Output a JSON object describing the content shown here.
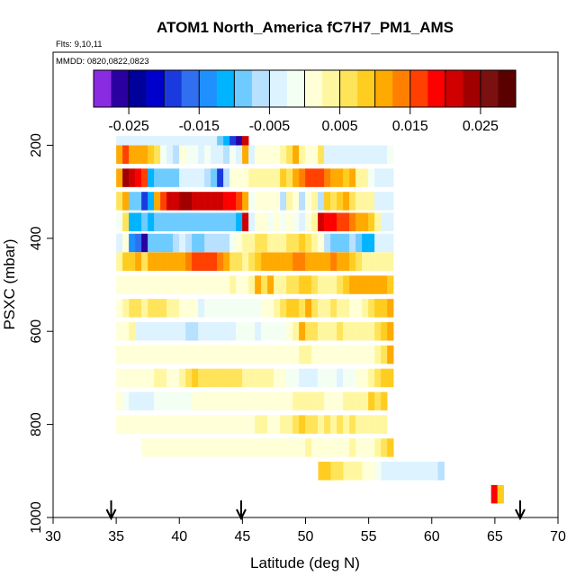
{
  "chart_data": {
    "type": "heatmap",
    "title": "ATOM1 North_America fC7H7_PM1_AMS",
    "subtitle_flights": "Flts: 9,10,11",
    "subtitle_dates": "MMDD: 0820,0822,0823",
    "xlabel": "Latitude (deg N)",
    "ylabel": "PSXC (mbar)",
    "xlim": [
      30,
      70
    ],
    "ylim": [
      1000,
      0
    ],
    "x_ticks": [
      "30",
      "35",
      "40",
      "45",
      "50",
      "55",
      "60",
      "65",
      "70"
    ],
    "y_ticks": [
      "200",
      "400",
      "600",
      "800",
      "1000"
    ],
    "colorbar": {
      "range": [
        -0.03,
        0.03
      ],
      "tick_labels": [
        "-0.025",
        "-0.015",
        "-0.005",
        "0.005",
        "0.015",
        "0.025"
      ],
      "tick_values": [
        -0.025,
        -0.015,
        -0.005,
        0.005,
        0.015,
        0.025
      ],
      "colors": [
        "#8a2be2",
        "#2a00a0",
        "#00009a",
        "#0000cd",
        "#1a3ae0",
        "#2f6ff0",
        "#1e90ff",
        "#00b4ff",
        "#6ecbff",
        "#b8e0ff",
        "#ddf3ff",
        "#f4fff4",
        "#ffffd8",
        "#fff7a0",
        "#ffe45a",
        "#ffcc20",
        "#ffaa00",
        "#ff8000",
        "#ff4000",
        "#ff0000",
        "#d00000",
        "#a00000",
        "#7a1010",
        "#5a0000"
      ]
    },
    "flight_markers_latitude": [
      34.6,
      44.9,
      67.0
    ],
    "bands": [
      {
        "pressure": 200,
        "lat_start": 35,
        "values": [
          -0.003,
          -0.003,
          -0.004,
          -0.004,
          -0.004,
          -0.004,
          -0.003,
          -0.003,
          -0.003,
          -0.003,
          -0.003,
          -0.004,
          -0.004,
          -0.004,
          -0.004,
          -0.005,
          -0.008,
          -0.012,
          -0.02,
          -0.025,
          0.022
        ]
      },
      {
        "pressure": 220,
        "lat_start": 35,
        "values": [
          0.012,
          0.016,
          0.012,
          0.011,
          0.01,
          0.009,
          0.006,
          -0.002,
          -0.003,
          -0.006,
          0.0,
          -0.002,
          -0.002,
          -0.003,
          -0.002,
          -0.004,
          -0.003,
          -0.007,
          -0.002,
          -0.004,
          0.012,
          -0.004,
          0.002,
          0.001,
          0.002,
          0.002,
          0.004,
          0.006,
          0.01,
          0.004,
          0.002,
          0.002,
          0.006,
          -0.003,
          -0.004,
          -0.003,
          -0.003,
          -0.003,
          -0.003,
          -0.003,
          -0.003,
          -0.003,
          -0.003,
          -0.002
        ]
      },
      {
        "pressure": 270,
        "lat_start": 35,
        "values": [
          0.012,
          0.024,
          0.02,
          0.018,
          0.016,
          -0.012,
          -0.01,
          -0.01,
          -0.009,
          -0.009,
          -0.004,
          -0.003,
          -0.004,
          -0.005,
          -0.007,
          -0.01,
          -0.018,
          -0.006,
          0.002,
          0.002,
          0.002,
          0.004,
          0.004,
          0.004,
          0.004,
          0.004,
          0.008,
          0.006,
          0.01,
          0.014,
          0.015,
          0.017,
          0.016,
          0.014,
          0.011,
          0.01,
          0.009,
          0.01,
          0.004,
          0.003,
          -0.002,
          -0.003,
          -0.003,
          -0.003
        ]
      },
      {
        "pressure": 320,
        "lat_start": 35,
        "values": [
          0.006,
          0.012,
          -0.01,
          -0.008,
          -0.018,
          -0.012,
          0.012,
          0.015,
          0.02,
          0.022,
          0.024,
          0.024,
          0.022,
          0.022,
          0.02,
          0.02,
          0.02,
          0.018,
          0.018,
          0.016,
          0.012,
          -0.002,
          0.0,
          0.002,
          0.002,
          0.0,
          -0.006,
          0.004,
          0.002,
          -0.006,
          0.0,
          0.003,
          -0.006,
          0.008,
          0.006,
          0.008,
          0.01,
          0.006,
          0.004,
          0.003,
          0.004,
          -0.003,
          -0.003,
          -0.003
        ]
      },
      {
        "pressure": 365,
        "lat_start": 35,
        "values": [
          -0.002,
          0.006,
          -0.012,
          -0.012,
          -0.01,
          -0.012,
          -0.01,
          -0.01,
          -0.01,
          -0.01,
          -0.01,
          -0.01,
          -0.01,
          -0.01,
          -0.01,
          -0.01,
          -0.01,
          -0.01,
          -0.01,
          -0.012,
          0.02,
          -0.003,
          0.0,
          0.001,
          -0.002,
          0.0,
          -0.002,
          0.001,
          -0.002,
          -0.003,
          0.0,
          0.004,
          0.02,
          0.018,
          0.018,
          0.016,
          0.015,
          0.014,
          0.012,
          0.01,
          0.008,
          0.004,
          -0.004,
          -0.003
        ]
      },
      {
        "pressure": 410,
        "lat_start": 35,
        "values": [
          -0.003,
          0.002,
          -0.014,
          -0.016,
          -0.026,
          -0.008,
          -0.01,
          -0.009,
          -0.009,
          -0.007,
          -0.004,
          -0.007,
          -0.008,
          -0.008,
          -0.007,
          -0.007,
          -0.006,
          -0.007,
          -0.002,
          0.002,
          0.003,
          0.004,
          0.006,
          0.006,
          0.005,
          0.004,
          0.004,
          0.006,
          0.006,
          0.008,
          0.006,
          0.004,
          0.002,
          -0.006,
          -0.008,
          -0.008,
          -0.008,
          -0.007,
          -0.01,
          -0.011,
          -0.012,
          -0.004,
          -0.003,
          -0.003
        ]
      },
      {
        "pressure": 450,
        "lat_start": 35,
        "values": [
          0.004,
          0.008,
          0.008,
          0.01,
          0.006,
          0.01,
          0.012,
          0.011,
          0.012,
          0.012,
          0.011,
          0.014,
          0.015,
          0.016,
          0.016,
          0.016,
          0.014,
          0.012,
          0.006,
          0.006,
          0.004,
          0.006,
          0.008,
          0.01,
          0.012,
          0.01,
          0.011,
          0.012,
          0.013,
          0.013,
          0.012,
          0.012,
          0.01,
          0.012,
          0.014,
          0.012,
          0.01,
          0.008,
          0.006,
          0.005,
          0.004,
          0.004,
          0.004,
          0.003
        ]
      },
      {
        "pressure": 500,
        "lat_start": 35,
        "values": [
          0.001,
          0.002,
          0.002,
          0.002,
          0.002,
          0.002,
          0.002,
          0.002,
          0.002,
          0.002,
          0.001,
          0.001,
          0.001,
          0.002,
          0.002,
          0.001,
          0.001,
          0.002,
          0.003,
          0.002,
          0.002,
          0.004,
          0.01,
          0.006,
          0.01,
          0.004,
          0.004,
          0.006,
          0.006,
          0.008,
          0.008,
          0.006,
          0.004,
          0.003,
          0.004,
          0.006,
          0.008,
          0.01,
          0.012,
          0.012,
          0.012,
          0.012,
          0.01,
          0.008
        ]
      },
      {
        "pressure": 550,
        "lat_start": 35,
        "values": [
          0.002,
          0.003,
          0.006,
          0.006,
          0.004,
          0.006,
          0.006,
          0.006,
          0.004,
          0.003,
          0.002,
          0.002,
          0.002,
          -0.003,
          -0.002,
          -0.002,
          -0.002,
          -0.002,
          -0.002,
          -0.002,
          -0.002,
          -0.002,
          -0.002,
          0.002,
          0.002,
          0.004,
          0.006,
          0.008,
          0.008,
          0.006,
          0.012,
          0.006,
          0.004,
          0.004,
          0.006,
          0.004,
          0.003,
          0.002,
          0.002,
          0.004,
          0.006,
          0.008,
          0.008,
          0.01
        ]
      },
      {
        "pressure": 600,
        "lat_start": 35,
        "values": [
          0.001,
          0.002,
          0.003,
          -0.004,
          -0.005,
          -0.005,
          -0.004,
          -0.004,
          -0.004,
          -0.004,
          -0.004,
          -0.007,
          -0.006,
          -0.005,
          -0.004,
          -0.004,
          -0.004,
          -0.003,
          -0.003,
          -0.002,
          -0.002,
          -0.002,
          -0.003,
          -0.002,
          -0.002,
          -0.002,
          -0.001,
          0.001,
          0.004,
          0.01,
          0.006,
          0.006,
          0.005,
          0.004,
          0.004,
          0.006,
          0.004,
          0.003,
          0.004,
          0.004,
          0.004,
          0.006,
          0.008,
          0.01
        ]
      },
      {
        "pressure": 650,
        "lat_start": 35,
        "values": [
          0.001,
          0.001,
          0.002,
          0.001,
          0.001,
          0.001,
          0.002,
          0.002,
          0.001,
          0.001,
          0.001,
          0.001,
          0.002,
          0.002,
          0.001,
          0.001,
          0.001,
          0.002,
          0.002,
          0.002,
          0.002,
          0.002,
          0.002,
          0.001,
          0.001,
          0.001,
          0.002,
          0.002,
          0.002,
          0.003,
          0.003,
          0.002,
          0.002,
          0.001,
          0.001,
          0.001,
          0.001,
          0.002,
          0.002,
          0.002,
          0.002,
          0.004,
          0.006,
          0.01
        ]
      },
      {
        "pressure": 700,
        "lat_start": 35,
        "values": [
          0.0,
          0.0,
          0.001,
          0.002,
          0.002,
          0.002,
          0.003,
          0.003,
          0.002,
          0.002,
          0.005,
          0.007,
          0.008,
          0.007,
          0.007,
          0.007,
          0.007,
          0.007,
          0.006,
          0.006,
          0.005,
          0.005,
          0.004,
          0.004,
          0.003,
          0.002,
          0.002,
          -0.002,
          -0.002,
          -0.003,
          -0.004,
          -0.003,
          -0.002,
          -0.002,
          -0.002,
          -0.003,
          -0.002,
          -0.001,
          0.001,
          0.002,
          0.004,
          0.006,
          0.008,
          0.008
        ]
      },
      {
        "pressure": 750,
        "lat_start": 35,
        "values": [
          0.001,
          -0.002,
          -0.003,
          -0.003,
          -0.003,
          -0.003,
          -0.002,
          -0.002,
          -0.002,
          -0.002,
          -0.002,
          -0.001,
          0.0,
          0.001,
          0.002,
          0.001,
          0.001,
          0.001,
          0.001,
          0.002,
          0.002,
          0.001,
          0.001,
          0.001,
          0.001,
          0.002,
          0.002,
          0.002,
          0.003,
          0.003,
          0.004,
          0.003,
          0.003,
          0.002,
          0.002,
          0.002,
          0.004,
          0.004,
          0.004,
          0.005,
          0.008,
          0.006,
          0.008
        ]
      },
      {
        "pressure": 800,
        "lat_start": 35,
        "values": [
          0.001,
          0.001,
          0.002,
          0.002,
          0.002,
          0.002,
          0.001,
          0.001,
          0.001,
          0.001,
          0.001,
          0.001,
          0.001,
          0.001,
          0.002,
          0.002,
          0.002,
          0.002,
          0.002,
          0.002,
          0.002,
          0.002,
          0.003,
          0.003,
          0.002,
          0.002,
          0.003,
          0.004,
          0.006,
          0.008,
          0.006,
          0.006,
          0.005,
          0.006,
          0.004,
          0.006,
          0.004,
          0.006,
          0.004,
          0.005,
          0.004,
          0.004,
          0.004
        ]
      },
      {
        "pressure": 850,
        "lat_start": 37,
        "values": [
          0.0,
          0.001,
          0.0,
          0.0,
          0.0,
          0.0,
          0.0,
          0.0,
          0.0,
          0.0,
          0.001,
          0.0,
          0.0,
          0.0,
          0.0,
          0.0,
          0.0,
          0.0,
          0.0,
          0.0,
          0.001,
          0.001,
          0.001,
          0.001,
          0.002,
          0.002,
          0.003,
          0.002,
          0.002,
          0.002,
          0.002,
          0.002,
          0.002,
          0.003,
          0.002,
          0.002,
          0.002,
          0.003,
          0.006,
          0.008
        ]
      },
      {
        "pressure": 900,
        "lat_start": 51,
        "values": [
          0.008,
          0.008,
          0.007,
          0.006,
          0.005,
          0.004,
          0.004,
          0.002,
          0.001,
          -0.002,
          -0.003,
          -0.003,
          -0.003,
          -0.004,
          -0.004,
          -0.004,
          -0.005,
          -0.005,
          -0.005,
          -0.006
        ]
      },
      {
        "pressure": 950,
        "lat_start": 64.7,
        "values": [
          0.018,
          0.008
        ]
      }
    ]
  }
}
